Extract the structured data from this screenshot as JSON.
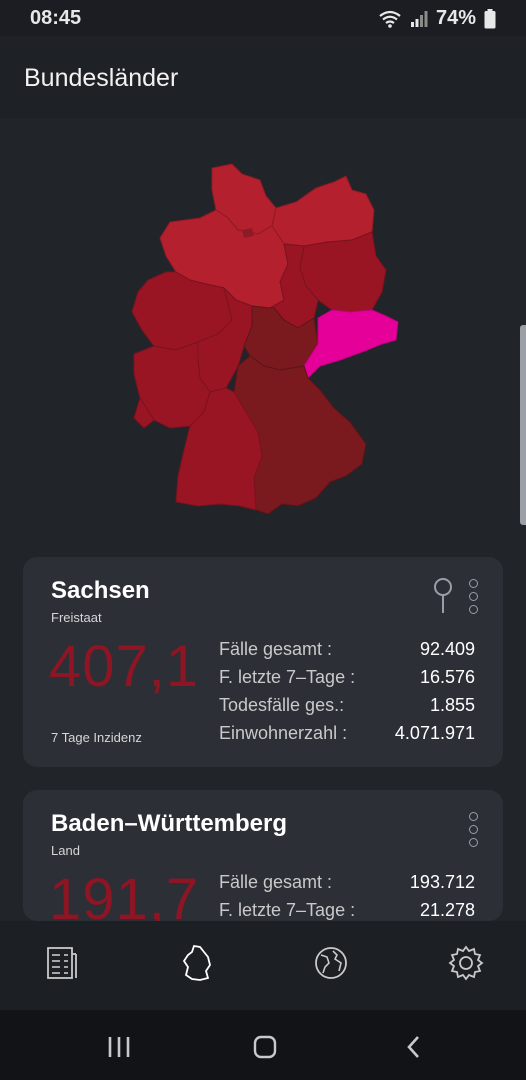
{
  "status": {
    "time": "08:45",
    "battery": "74%"
  },
  "header": {
    "title": "Bundesländer"
  },
  "map": {
    "highlight_color": "#e6009a",
    "highlighted_state": "Sachsen"
  },
  "cards": [
    {
      "name": "Sachsen",
      "kind": "Freistaat",
      "incidence": "407,1",
      "incidence_label": "7 Tage Inzidenz",
      "stats": [
        {
          "label": "Fälle gesamt :",
          "value": "92.409"
        },
        {
          "label": "F. letzte 7–Tage :",
          "value": "16.576"
        },
        {
          "label": "Todesfälle ges.:",
          "value": "1.855"
        },
        {
          "label": "Einwohnerzahl :",
          "value": "4.071.971"
        }
      ]
    },
    {
      "name": "Baden–Württemberg",
      "kind": "Land",
      "incidence": "191,7",
      "stats": [
        {
          "label": "Fälle gesamt :",
          "value": "193.712"
        },
        {
          "label": "F. letzte 7–Tage :",
          "value": "21.278"
        }
      ]
    }
  ],
  "nav": {
    "icons": [
      "news-icon",
      "germany-icon",
      "globe-icon",
      "settings-icon"
    ]
  }
}
